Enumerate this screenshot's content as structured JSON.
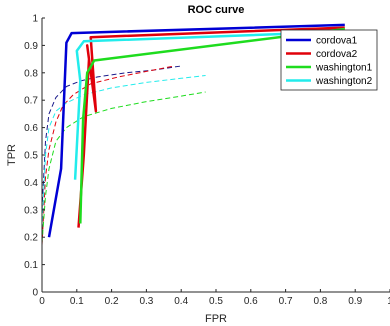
{
  "chart_data": {
    "type": "line",
    "title": "ROC curve",
    "xlabel": "FPR",
    "ylabel": "TPR",
    "xlim": [
      0,
      1
    ],
    "ylim": [
      0,
      1
    ],
    "xticks": [
      "0",
      "0.1",
      "0.2",
      "0.3",
      "0.4",
      "0.5",
      "0.6",
      "0.7",
      "0.8",
      "0.9",
      "1"
    ],
    "yticks": [
      "0",
      "0.1",
      "0.2",
      "0.3",
      "0.4",
      "0.5",
      "0.6",
      "0.7",
      "0.8",
      "0.9",
      "1"
    ],
    "grid": false,
    "legend_position": "top-right",
    "series": [
      {
        "name": "cordova1",
        "color": "#0000d4",
        "style": "solid",
        "x": [
          0.02,
          0.055,
          0.07,
          0.085,
          0.87
        ],
        "y": [
          0.2,
          0.45,
          0.91,
          0.945,
          0.975
        ]
      },
      {
        "name": "cordova2",
        "color": "#e0000a",
        "style": "solid",
        "x": [
          0.105,
          0.12,
          0.135,
          0.13,
          0.155,
          0.14,
          0.87
        ],
        "y": [
          0.235,
          0.5,
          0.85,
          0.9,
          0.66,
          0.93,
          0.965
        ]
      },
      {
        "name": "washington1",
        "color": "#1edc1e",
        "style": "solid",
        "x": [
          0.11,
          0.118,
          0.13,
          0.15,
          0.87
        ],
        "y": [
          0.25,
          0.63,
          0.8,
          0.845,
          0.96
        ]
      },
      {
        "name": "washington2",
        "color": "#22ecec",
        "style": "solid",
        "x": [
          0.095,
          0.11,
          0.1,
          0.12,
          0.87
        ],
        "y": [
          0.41,
          0.77,
          0.88,
          0.915,
          0.95
        ]
      },
      {
        "name": "",
        "color": "#1a1a8a",
        "style": "dashed",
        "x": [
          0.0,
          0.01,
          0.02,
          0.04,
          0.07,
          0.11,
          0.16,
          0.24,
          0.32,
          0.4
        ],
        "y": [
          0.3,
          0.55,
          0.65,
          0.71,
          0.75,
          0.77,
          0.785,
          0.8,
          0.81,
          0.825
        ]
      },
      {
        "name": "",
        "color": "#e0000a",
        "style": "dashed",
        "x": [
          0.0,
          0.01,
          0.02,
          0.04,
          0.06,
          0.09,
          0.14,
          0.22,
          0.3,
          0.38
        ],
        "y": [
          0.17,
          0.42,
          0.52,
          0.62,
          0.68,
          0.72,
          0.76,
          0.785,
          0.805,
          0.825
        ]
      },
      {
        "name": "",
        "color": "#1edc1e",
        "style": "dashed",
        "x": [
          0.0,
          0.01,
          0.02,
          0.04,
          0.07,
          0.12,
          0.2,
          0.3,
          0.4,
          0.47
        ],
        "y": [
          0.18,
          0.35,
          0.45,
          0.55,
          0.6,
          0.64,
          0.67,
          0.695,
          0.715,
          0.73
        ]
      },
      {
        "name": "",
        "color": "#22ecec",
        "style": "dashed",
        "x": [
          0.0,
          0.01,
          0.02,
          0.04,
          0.07,
          0.12,
          0.2,
          0.3,
          0.4,
          0.47
        ],
        "y": [
          0.23,
          0.5,
          0.6,
          0.66,
          0.69,
          0.72,
          0.745,
          0.765,
          0.78,
          0.79
        ]
      }
    ]
  }
}
